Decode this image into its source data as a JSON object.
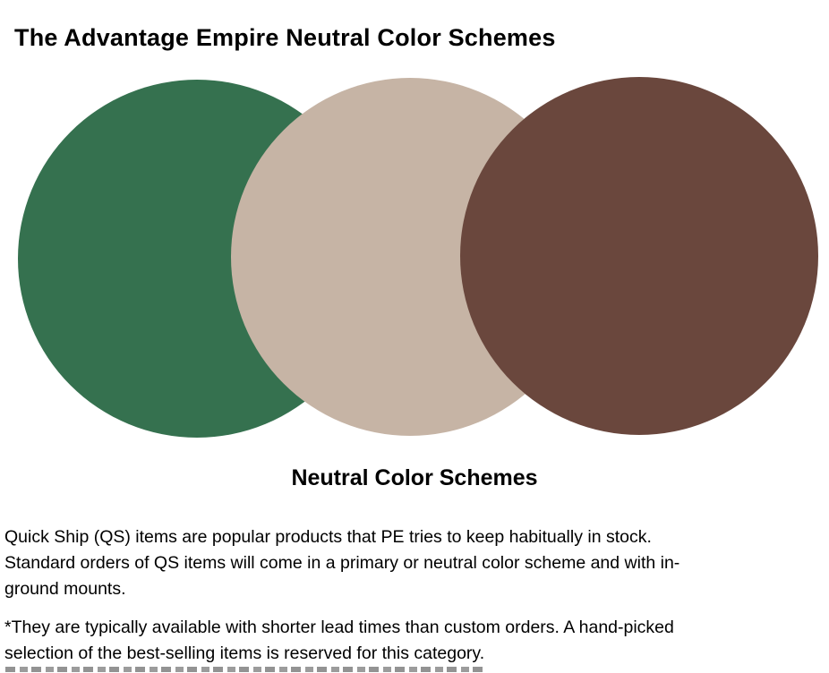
{
  "page": {
    "title": {
      "prefix": "The Advantage Empire ",
      "emphasis": "Neutral Color Schemes"
    },
    "palette": {
      "caption": "Neutral Color Schemes",
      "swatches": [
        {
          "name": "green",
          "color": "#35714F"
        },
        {
          "name": "tan",
          "color": "#C6B4A5"
        },
        {
          "name": "brown",
          "color": "#6A473D"
        }
      ]
    },
    "paragraphs": {
      "quick_ship": "Quick Ship (QS) items are popular products that PE tries to keep habitually in stock.\nStandard orders of QS items will come in a primary or neutral color scheme and with in-\nground mounts.",
      "footnote": "*They are typically available with shorter lead times than custom orders. A hand-picked\nselection of the best-selling items is reserved for this category."
    }
  }
}
